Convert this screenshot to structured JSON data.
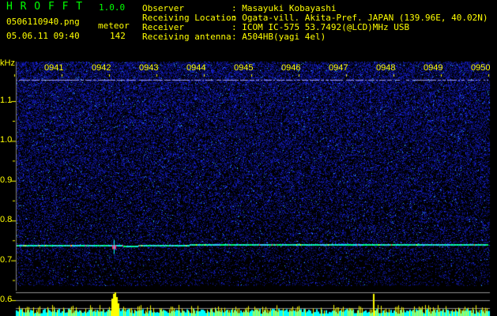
{
  "app": {
    "name": "H R O F F T",
    "version": "1.0.0"
  },
  "file": {
    "name": "0506110940.png",
    "datetime": "05.06.11 09:40"
  },
  "meteor": {
    "label": "meteor",
    "count": "142"
  },
  "info": [
    {
      "label": "Observer",
      "value": ": Masayuki Kobayashi"
    },
    {
      "label": "Receiving Location",
      "value": ": Ogata-vill. Akita-Pref. JAPAN (139.96E, 40.02N)"
    },
    {
      "label": "Receiver",
      "value": ": ICOM IC-575 53.7492(@LCD)MHz USB"
    },
    {
      "label": "Receiving antenna",
      "value": ": A504HB(yagi 4el)"
    }
  ],
  "spectrogram": {
    "unit": "kHz",
    "y_ticks": [
      "1.1",
      "1.0",
      "0.9",
      "0.8",
      "0.7",
      "0.6"
    ],
    "x_ticks": [
      "0941",
      "0942",
      "0943",
      "0944",
      "0945",
      "0946",
      "0947",
      "0948",
      "0949",
      "0950"
    ],
    "echo_frequency_khz": 0.74,
    "carrier_line_khz": 1.153,
    "colors": {
      "text": "#ffff00",
      "title": "#00ff00",
      "noise": "#1a2adf",
      "echo": "#00ffcc",
      "bars": "#ffff00",
      "bar_base": "#00ffff"
    }
  }
}
